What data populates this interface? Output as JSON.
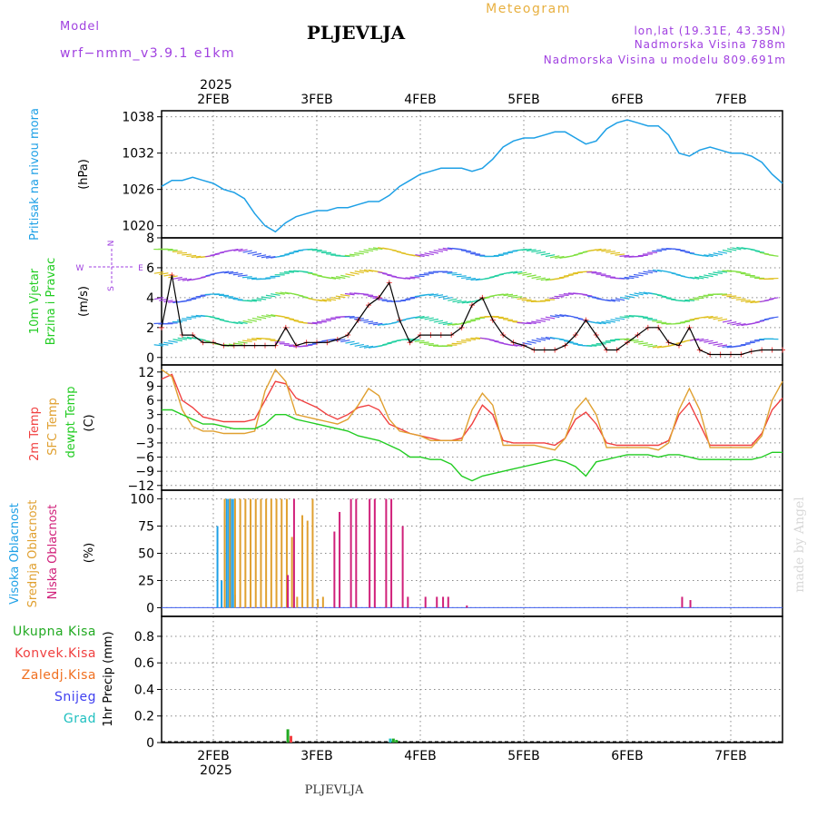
{
  "header": {
    "model_label": "Model",
    "model_name": "wrf−nmm_v3.9.1 e1km",
    "station": "PLJEVLJA",
    "product": "Meteogram",
    "lonlat": "lon,lat (19.31E, 43.35N)",
    "elevation": "Nadmorska Visina 788m",
    "model_elevation": "Nadmorska Visina u modelu 809.691m",
    "year_top": "2025",
    "footer_station": "PLJEVLJA",
    "watermark": "made by Angel"
  },
  "colors": {
    "pressure": "#1ea0e6",
    "temp2m": "#f04040",
    "sfc_temp": "#e0a030",
    "dewpt": "#22cc22",
    "cloud_high": "#1ea0e6",
    "cloud_mid": "#e0a030",
    "cloud_low": "#d0207a",
    "wind_purple": "#a040e0",
    "precip_total": "#22aa22",
    "precip_conv": "#f04040",
    "precip_frozen": "#f07020",
    "snow": "#4040f0",
    "grad": "#20c0c0"
  },
  "time_axis": {
    "days": [
      "2FEB",
      "3FEB",
      "4FEB",
      "5FEB",
      "6FEB",
      "7FEB"
    ],
    "year": "2025",
    "start_day": 1.5,
    "end_day": 7.5
  },
  "chart_data": [
    {
      "type": "line",
      "panel": "pressure",
      "ylabel_main": "Pritisak na nivou mora",
      "ylabel_unit": "(hPa)",
      "yticks": [
        "1038",
        "1032",
        "1026",
        "1020"
      ],
      "ylim": [
        1018,
        1039
      ],
      "x_day": [
        1.5,
        1.6,
        1.7,
        1.8,
        1.9,
        2.0,
        2.1,
        2.2,
        2.3,
        2.4,
        2.5,
        2.6,
        2.7,
        2.8,
        2.9,
        3.0,
        3.1,
        3.2,
        3.3,
        3.4,
        3.5,
        3.6,
        3.7,
        3.8,
        3.9,
        4.0,
        4.1,
        4.2,
        4.3,
        4.4,
        4.5,
        4.6,
        4.7,
        4.8,
        4.9,
        5.0,
        5.1,
        5.2,
        5.3,
        5.4,
        5.5,
        5.6,
        5.7,
        5.8,
        5.9,
        6.0,
        6.1,
        6.2,
        6.3,
        6.4,
        6.5,
        6.6,
        6.7,
        6.8,
        6.9,
        7.0,
        7.1,
        7.2,
        7.3,
        7.4,
        7.5
      ],
      "values": [
        1026.5,
        1027.5,
        1027.5,
        1028,
        1027.5,
        1027,
        1026,
        1025.5,
        1024.5,
        1022,
        1020,
        1019,
        1020.5,
        1021.5,
        1022,
        1022.5,
        1022.5,
        1023,
        1023,
        1023.5,
        1024,
        1024,
        1025,
        1026.5,
        1027.5,
        1028.5,
        1029,
        1029.5,
        1029.5,
        1029.5,
        1029,
        1029.5,
        1031,
        1033,
        1034,
        1034.5,
        1034.5,
        1035,
        1035.5,
        1035.5,
        1034.5,
        1033.5,
        1034,
        1036,
        1037,
        1037.5,
        1037,
        1036.5,
        1036.5,
        1035,
        1032,
        1031.5,
        1032.5,
        1033,
        1032.5,
        1032,
        1032,
        1031.5,
        1030.5,
        1028.5,
        1027
      ],
      "grid": true
    },
    {
      "type": "line",
      "panel": "wind",
      "ylabel_main": "10m Vjetar",
      "ylabel_sub": "Brzina i Pravac",
      "ylabel_unit": "(m/s)",
      "yticks": [
        "8",
        "6",
        "4",
        "2",
        "0"
      ],
      "ylim": [
        -0.5,
        8
      ],
      "compass": {
        "n": "N",
        "s": "S",
        "w": "W",
        "e": "E"
      },
      "x_day": [
        1.5,
        1.6,
        1.7,
        1.8,
        1.9,
        2.0,
        2.1,
        2.2,
        2.3,
        2.4,
        2.5,
        2.6,
        2.7,
        2.8,
        2.9,
        3.0,
        3.1,
        3.2,
        3.3,
        3.4,
        3.5,
        3.6,
        3.7,
        3.8,
        3.9,
        4.0,
        4.1,
        4.2,
        4.3,
        4.4,
        4.5,
        4.6,
        4.7,
        4.8,
        4.9,
        5.0,
        5.1,
        5.2,
        5.3,
        5.4,
        5.5,
        5.6,
        5.7,
        5.8,
        5.9,
        6.0,
        6.1,
        6.2,
        6.3,
        6.4,
        6.5,
        6.6,
        6.7,
        6.8,
        6.9,
        7.0,
        7.1,
        7.2,
        7.3,
        7.4,
        7.5
      ],
      "values": [
        2,
        5.5,
        1.5,
        1.5,
        1,
        1,
        0.8,
        0.8,
        0.8,
        0.8,
        0.8,
        0.8,
        2,
        0.8,
        1,
        1,
        1,
        1.2,
        1.5,
        2.5,
        3.5,
        4,
        5,
        2.5,
        1,
        1.5,
        1.5,
        1.5,
        1.5,
        2,
        3.5,
        4,
        2.5,
        1.5,
        1,
        0.8,
        0.5,
        0.5,
        0.5,
        0.8,
        1.5,
        2.5,
        1.5,
        0.5,
        0.5,
        1,
        1.5,
        2,
        2,
        1,
        0.8,
        2,
        0.5,
        0.2,
        0.2,
        0.2,
        0.2,
        0.4,
        0.5,
        0.5,
        0.5
      ],
      "grid": true
    },
    {
      "type": "line",
      "panel": "temperature",
      "ylabel_a": "2m Temp",
      "ylabel_b": "SFC Temp",
      "ylabel_c": "dewpt Temp",
      "ylabel_unit": "(C)",
      "yticks": [
        "12",
        "9",
        "6",
        "3",
        "0",
        "−3",
        "−6",
        "−9",
        "−12"
      ],
      "ylim": [
        -13,
        13.5
      ],
      "x_day": [
        1.5,
        1.6,
        1.7,
        1.8,
        1.9,
        2.0,
        2.1,
        2.2,
        2.3,
        2.4,
        2.5,
        2.6,
        2.7,
        2.8,
        2.9,
        3.0,
        3.1,
        3.2,
        3.3,
        3.4,
        3.5,
        3.6,
        3.7,
        3.8,
        3.9,
        4.0,
        4.1,
        4.2,
        4.3,
        4.4,
        4.5,
        4.6,
        4.7,
        4.8,
        4.9,
        5.0,
        5.1,
        5.2,
        5.3,
        5.4,
        5.5,
        5.6,
        5.7,
        5.8,
        5.9,
        6.0,
        6.1,
        6.2,
        6.3,
        6.4,
        6.5,
        6.6,
        6.7,
        6.8,
        6.9,
        7.0,
        7.1,
        7.2,
        7.3,
        7.4,
        7.5
      ],
      "series": [
        {
          "name": "2m Temp",
          "values": [
            10.5,
            11.5,
            6,
            4.5,
            2.5,
            2,
            1.5,
            1.5,
            1.5,
            2,
            6,
            10,
            9.5,
            6.5,
            5.5,
            4.5,
            3,
            2,
            3,
            4.5,
            5,
            4,
            1,
            0,
            -1,
            -1.5,
            -2,
            -2.5,
            -2.5,
            -2,
            1,
            5,
            3,
            -2.5,
            -3,
            -3,
            -3,
            -3,
            -3.5,
            -2,
            2,
            3.5,
            1,
            -3,
            -3.5,
            -3.5,
            -3.5,
            -3.5,
            -3.5,
            -2.5,
            3,
            5.5,
            1,
            -3.5,
            -3.5,
            -3.5,
            -3.5,
            -3.5,
            -1,
            4,
            6.5
          ]
        },
        {
          "name": "SFC Temp",
          "values": [
            12.5,
            11,
            4,
            0.5,
            -0.5,
            -0.5,
            -1,
            -1,
            -1,
            -0.5,
            8,
            12.5,
            10,
            3,
            2.5,
            2,
            1.5,
            1,
            2,
            5,
            8.5,
            7,
            2,
            -0.5,
            -1,
            -1.5,
            -2.5,
            -2.5,
            -2.5,
            -2.5,
            4,
            7.5,
            5,
            -3.5,
            -3.5,
            -3.5,
            -3.5,
            -4,
            -4.5,
            -2,
            4,
            6.5,
            3,
            -4,
            -4,
            -4,
            -4,
            -4,
            -4.5,
            -3,
            4,
            8.5,
            4,
            -4,
            -4,
            -4,
            -4,
            -4,
            -1.5,
            6,
            10
          ]
        },
        {
          "name": "dewpt Temp",
          "values": [
            4,
            4,
            3,
            2,
            1,
            1,
            0.5,
            0,
            0,
            0,
            1,
            3,
            3,
            2,
            1.5,
            1,
            0.5,
            0,
            -0.5,
            -1.5,
            -2,
            -2.5,
            -3.5,
            -4.5,
            -6,
            -6,
            -6.5,
            -6.5,
            -7.5,
            -10,
            -11,
            -10,
            -9.5,
            -9,
            -8.5,
            -8,
            -7.5,
            -7,
            -6.5,
            -7,
            -8,
            -10,
            -7,
            -6.5,
            -6,
            -5.5,
            -5.5,
            -5.5,
            -6,
            -5.5,
            -5.5,
            -6,
            -6.5,
            -6.5,
            -6.5,
            -6.5,
            -6.5,
            -6.5,
            -6,
            -5,
            -5
          ]
        }
      ],
      "grid": true
    },
    {
      "type": "bar",
      "panel": "clouds",
      "ylabel_a": "Visoka Oblacnost",
      "ylabel_b": "Srednja Oblacnost",
      "ylabel_c": "Niska Oblacnost",
      "ylabel_unit": "(%)",
      "yticks": [
        "100",
        "75",
        "50",
        "25",
        "0"
      ],
      "ylim": [
        -8,
        108
      ],
      "series": [
        {
          "name": "Visoka Oblacnost",
          "x_day": [
            2.04,
            2.08,
            2.11,
            2.13,
            2.15,
            2.17,
            2.19,
            2.21
          ],
          "values": [
            75,
            25,
            88,
            100,
            100,
            100,
            100,
            12
          ]
        },
        {
          "name": "Srednja Oblacnost",
          "x_day": [
            2.11,
            2.16,
            2.21,
            2.26,
            2.31,
            2.36,
            2.41,
            2.46,
            2.51,
            2.56,
            2.61,
            2.66,
            2.71,
            2.76,
            2.81,
            2.86,
            2.91,
            2.96,
            3.01,
            3.06
          ],
          "values": [
            100,
            100,
            100,
            100,
            100,
            100,
            100,
            100,
            100,
            100,
            100,
            100,
            100,
            65,
            10,
            85,
            80,
            100,
            8,
            10
          ]
        },
        {
          "name": "Niska Oblacnost",
          "x_day": [
            2.72,
            2.78,
            3.17,
            3.22,
            3.33,
            3.38,
            3.51,
            3.56,
            3.67,
            3.72,
            3.83,
            3.88,
            4.05,
            4.16,
            4.22,
            4.27,
            4.45,
            6.53,
            6.61
          ],
          "values": [
            30,
            100,
            70,
            88,
            100,
            100,
            100,
            100,
            100,
            100,
            75,
            10,
            10,
            10,
            10,
            10,
            2,
            10,
            7
          ]
        }
      ],
      "grid": true
    },
    {
      "type": "bar",
      "panel": "precipitation",
      "ylabel_unit": "1hr Precip (mm)",
      "legend": [
        "Ukupna Kisa",
        "Konvek.Kisa",
        "Zaledj.Kisa",
        "Snijeg",
        "Grad"
      ],
      "yticks": [
        "0.8",
        "0.6",
        "0.4",
        "0.2",
        "0"
      ],
      "ylim": [
        0,
        0.95
      ],
      "series": [
        {
          "name": "Ukupna Kisa",
          "x_day": [
            2.72,
            3.74,
            3.77
          ],
          "values": [
            0.1,
            0.03,
            0.02
          ]
        },
        {
          "name": "Konvek.Kisa",
          "x_day": [
            2.75
          ],
          "values": [
            0.05
          ]
        },
        {
          "name": "Grad",
          "x_day": [
            3.71
          ],
          "values": [
            0.03
          ]
        }
      ],
      "grid": true
    }
  ]
}
